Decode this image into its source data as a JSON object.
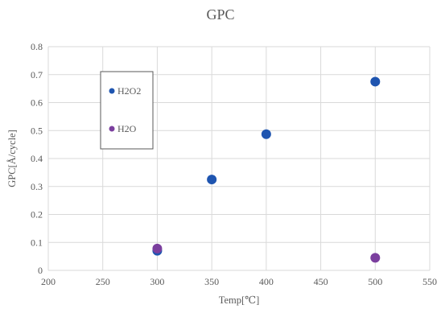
{
  "chart_data": {
    "type": "scatter",
    "title": "GPC",
    "xlabel": "Temp[℃]",
    "ylabel": "GPC[Å/cycle]",
    "xlim": [
      200,
      550
    ],
    "ylim": [
      0,
      0.8
    ],
    "xticks": [
      200,
      250,
      300,
      350,
      400,
      450,
      500,
      550
    ],
    "yticks": [
      0,
      0.1,
      0.2,
      0.3,
      0.4,
      0.5,
      0.6,
      0.7,
      0.8
    ],
    "xtick_labels": [
      "200",
      "250",
      "300",
      "350",
      "400",
      "450",
      "500",
      "550"
    ],
    "ytick_labels": [
      "0",
      "0.1",
      "0.2",
      "0.3",
      "0.4",
      "0.5",
      "0.6",
      "0.7",
      "0.8"
    ],
    "grid": true,
    "legend_position": "upper-left",
    "series": [
      {
        "name": "H2O2",
        "color": "#1f55b0",
        "x": [
          300,
          350,
          400,
          500
        ],
        "y": [
          0.07,
          0.325,
          0.487,
          0.675
        ]
      },
      {
        "name": "H2O",
        "color": "#7b3f9e",
        "x": [
          300,
          500
        ],
        "y": [
          0.078,
          0.045
        ]
      }
    ]
  }
}
